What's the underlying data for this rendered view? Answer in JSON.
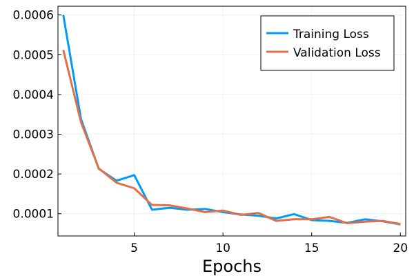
{
  "chart_data": {
    "type": "line",
    "title": "",
    "xlabel": "Epochs",
    "ylabel": "",
    "xlim": [
      0.7,
      20.3
    ],
    "ylim": [
      4.4e-05,
      0.000622
    ],
    "x_ticks": [
      5,
      10,
      15,
      20
    ],
    "x_tick_labels": [
      "5",
      "10",
      "15",
      "20"
    ],
    "y_ticks": [
      0.0001,
      0.0002,
      0.0003,
      0.0004,
      0.0005,
      0.0006
    ],
    "y_tick_labels": [
      "0.0001",
      "0.0002",
      "0.0003",
      "0.0004",
      "0.0005",
      "0.0006"
    ],
    "grid": true,
    "legend_position": "top-right",
    "x": [
      1,
      2,
      3,
      4,
      5,
      6,
      7,
      8,
      9,
      10,
      11,
      12,
      13,
      14,
      15,
      16,
      17,
      18,
      19,
      20
    ],
    "series": [
      {
        "name": "Training Loss",
        "color": "#009AF9",
        "values": [
          0.0006,
          0.000338,
          0.000213,
          0.000183,
          0.000197,
          0.00011,
          0.000115,
          0.00011,
          0.000112,
          0.000104,
          9.8e-05,
          9.5e-05,
          8.8e-05,
          9.9e-05,
          8.4e-05,
          8.2e-05,
          7.7e-05,
          8.6e-05,
          8.1e-05,
          7.3e-05
        ]
      },
      {
        "name": "Validation Loss",
        "color": "#E26F46",
        "values": [
          0.000512,
          0.00033,
          0.000214,
          0.000178,
          0.000164,
          0.000122,
          0.000121,
          0.000113,
          0.000104,
          0.000108,
          9.7e-05,
          0.000102,
          8.2e-05,
          8.6e-05,
          8.6e-05,
          9.2e-05,
          7.6e-05,
          8e-05,
          8.2e-05,
          7.4e-05
        ]
      }
    ]
  }
}
